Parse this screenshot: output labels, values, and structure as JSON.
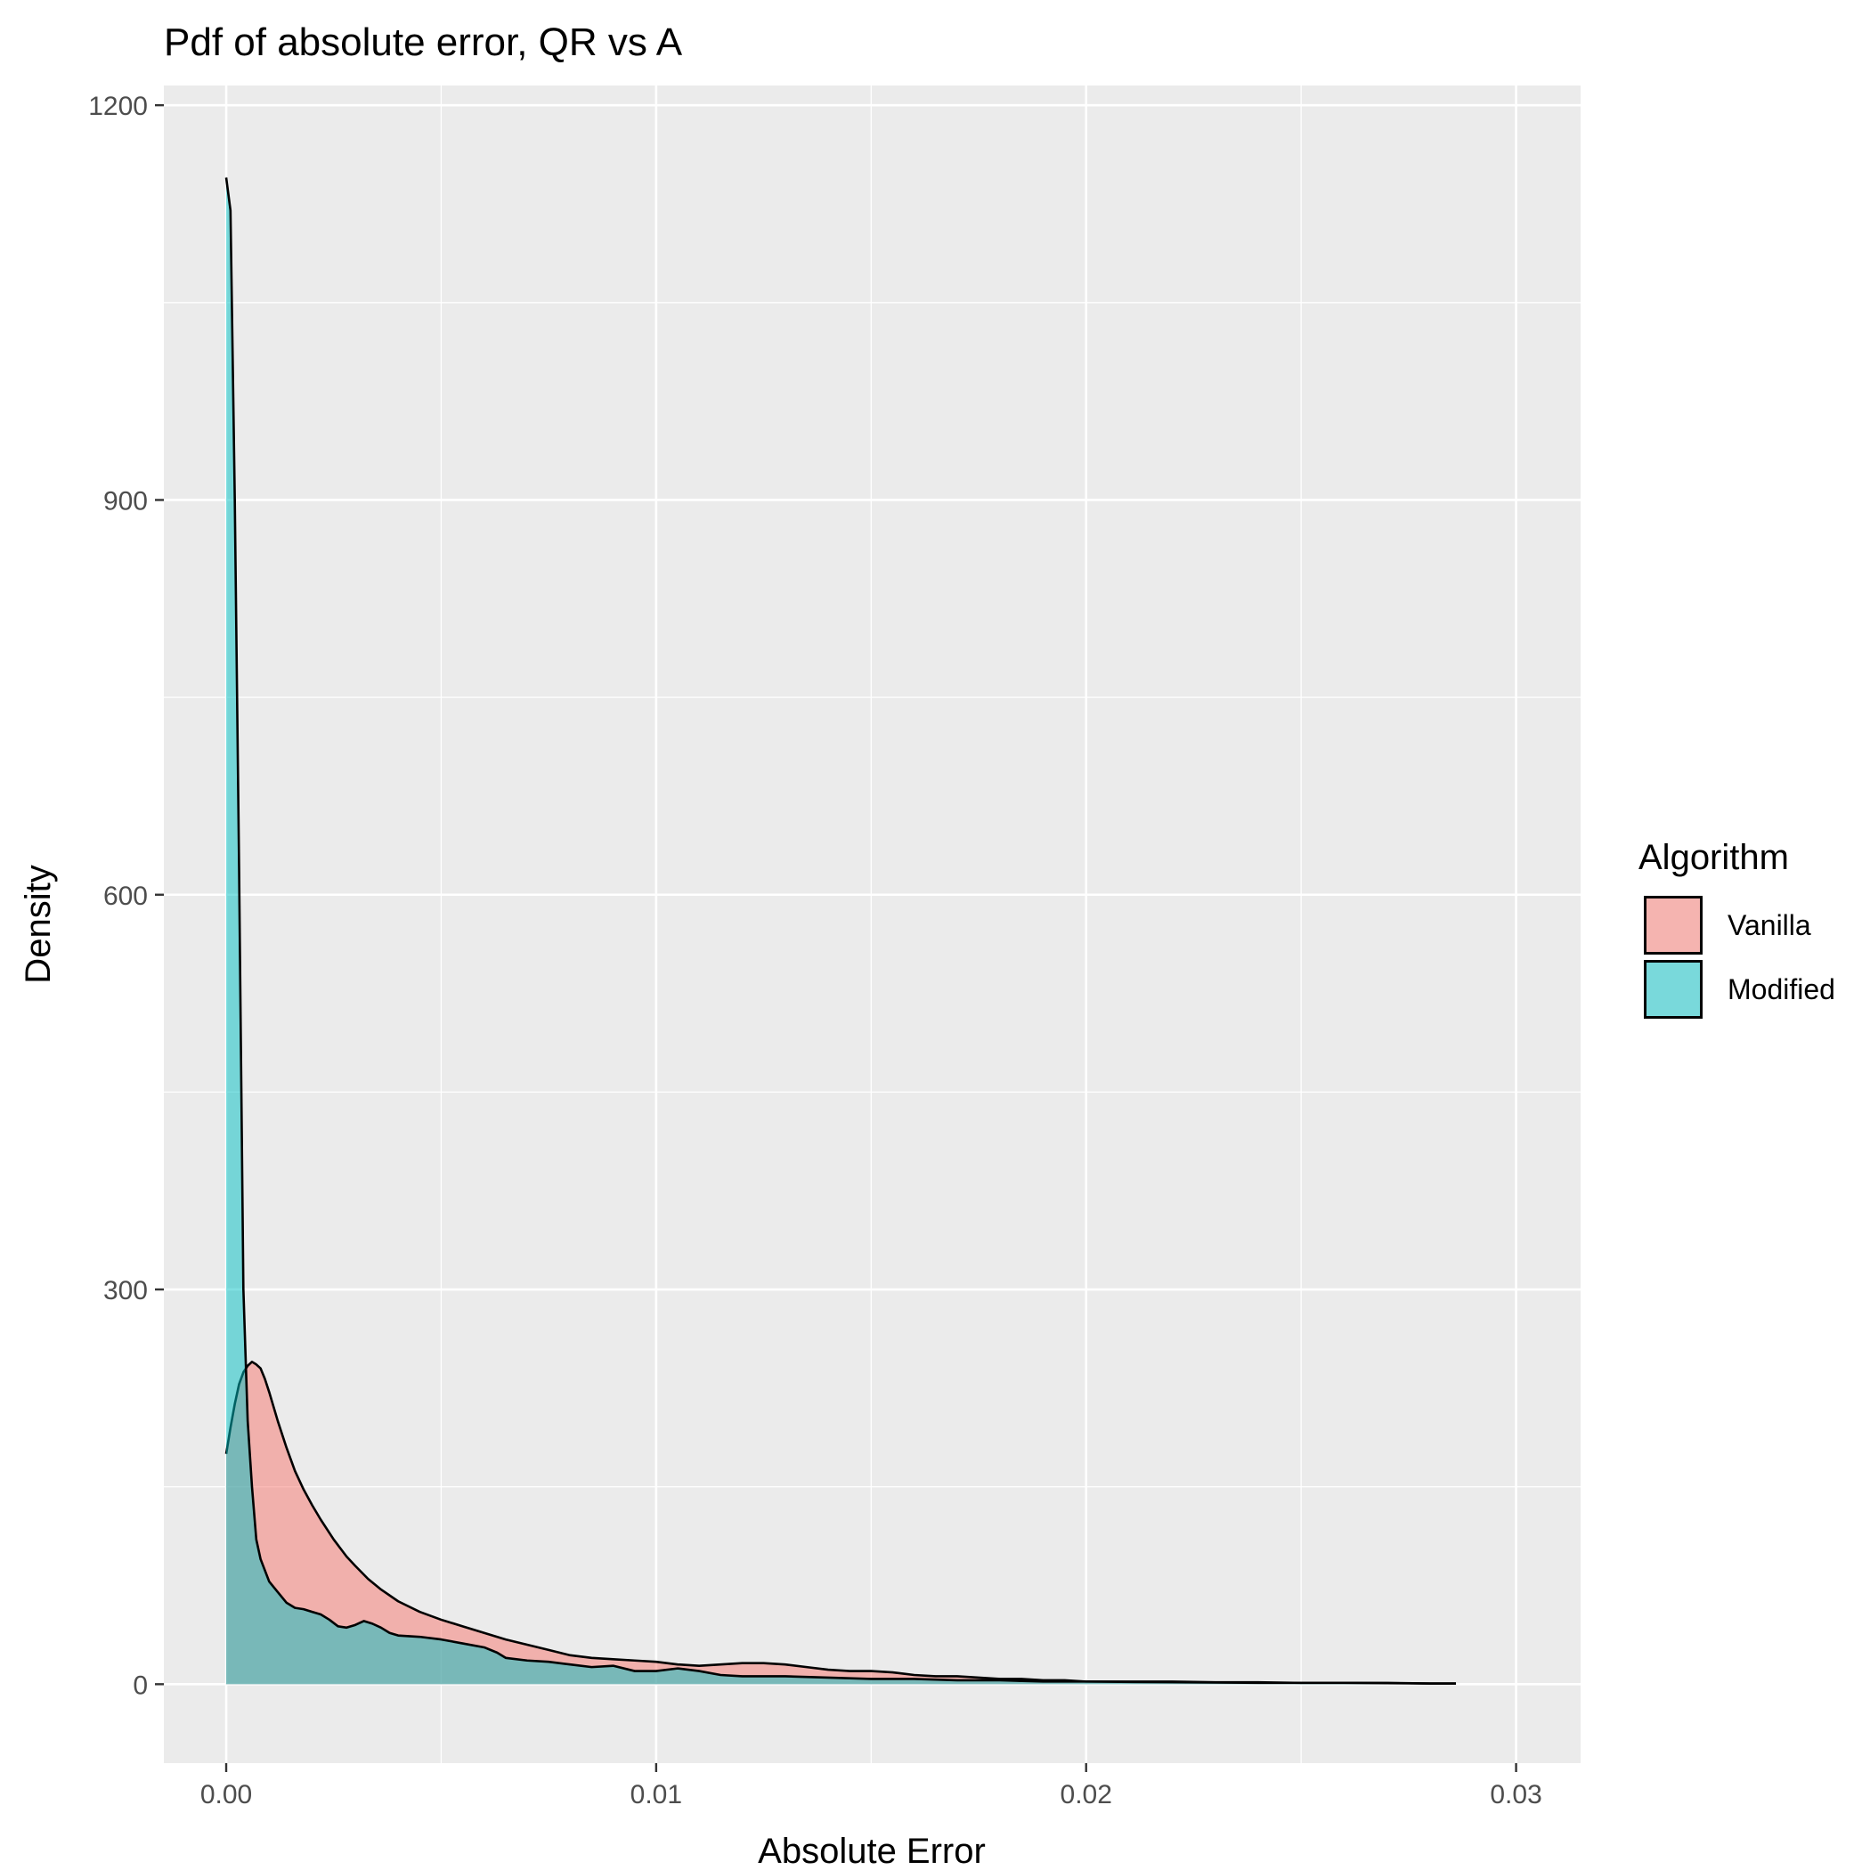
{
  "chart_data": {
    "type": "area",
    "title": "Pdf of absolute error, QR vs A",
    "xlabel": "Absolute Error",
    "ylabel": "Density",
    "xlim": [
      -0.00145,
      0.0315
    ],
    "ylim": [
      -60,
      1215
    ],
    "xticks": [
      "0.00",
      "0.01",
      "0.02",
      "0.03"
    ],
    "xtick_values": [
      0,
      0.01,
      0.02,
      0.03
    ],
    "yticks": [
      "0",
      "300",
      "600",
      "900",
      "1200"
    ],
    "ytick_values": [
      0,
      300,
      600,
      900,
      1200
    ],
    "grid": true,
    "legend": {
      "title": "Algorithm",
      "position": "right",
      "entries": [
        "Vanilla",
        "Modified"
      ]
    },
    "colors": {
      "Vanilla": "#F8766D",
      "Modified": "#00BFC4",
      "panel": "#EBEBEB",
      "grid": "#FFFFFF",
      "outline": "#000000"
    },
    "fill_alpha": 0.5,
    "series": [
      {
        "name": "Vanilla",
        "x": [
          0.0,
          0.0001,
          0.0002,
          0.0003,
          0.0004,
          0.0005,
          0.0006,
          0.0007,
          0.0008,
          0.0009,
          0.001,
          0.0012,
          0.0014,
          0.0016,
          0.0018,
          0.002,
          0.0022,
          0.0025,
          0.0028,
          0.003,
          0.0033,
          0.0036,
          0.004,
          0.0045,
          0.005,
          0.0055,
          0.006,
          0.0065,
          0.007,
          0.0075,
          0.008,
          0.0085,
          0.009,
          0.0095,
          0.01,
          0.0105,
          0.011,
          0.0115,
          0.012,
          0.0125,
          0.013,
          0.0135,
          0.014,
          0.0145,
          0.015,
          0.0155,
          0.016,
          0.0165,
          0.017,
          0.0175,
          0.018,
          0.0185,
          0.019,
          0.0195,
          0.02,
          0.021,
          0.022,
          0.023,
          0.024,
          0.025,
          0.026,
          0.027,
          0.028,
          0.0286
        ],
        "y": [
          175,
          195,
          213,
          228,
          237,
          242,
          245,
          243,
          240,
          232,
          222,
          200,
          180,
          162,
          148,
          136,
          125,
          110,
          97,
          90,
          80,
          72,
          63,
          55,
          49,
          44,
          39,
          34,
          30,
          26,
          22,
          20,
          19,
          18,
          17,
          15,
          14,
          15,
          16,
          16,
          15,
          13,
          11,
          10,
          10,
          9,
          7,
          6,
          6,
          5,
          4,
          4,
          3,
          3,
          2,
          2,
          2,
          1.5,
          1.5,
          1,
          1,
          1,
          0.5,
          0.5
        ]
      },
      {
        "name": "Modified",
        "x": [
          0.0,
          0.0001,
          0.0002,
          0.0003,
          0.0004,
          0.0005,
          0.0006,
          0.0007,
          0.0008,
          0.001,
          0.0012,
          0.0014,
          0.0016,
          0.0018,
          0.002,
          0.0022,
          0.0024,
          0.0026,
          0.0028,
          0.003,
          0.0032,
          0.0034,
          0.0036,
          0.0038,
          0.004,
          0.0045,
          0.005,
          0.0055,
          0.006,
          0.0063,
          0.0065,
          0.007,
          0.0075,
          0.008,
          0.0085,
          0.009,
          0.0095,
          0.01,
          0.0105,
          0.011,
          0.0115,
          0.012,
          0.013,
          0.014,
          0.015,
          0.016,
          0.017,
          0.018,
          0.019,
          0.02,
          0.022,
          0.024,
          0.026,
          0.028,
          0.0286
        ],
        "y": [
          1145,
          1120,
          900,
          620,
          300,
          200,
          150,
          110,
          95,
          78,
          70,
          62,
          58,
          57,
          55,
          53,
          49,
          44,
          43,
          45,
          48,
          46,
          43,
          39,
          37,
          36,
          34,
          31,
          28,
          24,
          20,
          18,
          17,
          15,
          13,
          14,
          10,
          10,
          12,
          10,
          7,
          6,
          6,
          5,
          4,
          4,
          3,
          3,
          2,
          2,
          1.5,
          1,
          1,
          0.5,
          0.5
        ]
      }
    ]
  }
}
